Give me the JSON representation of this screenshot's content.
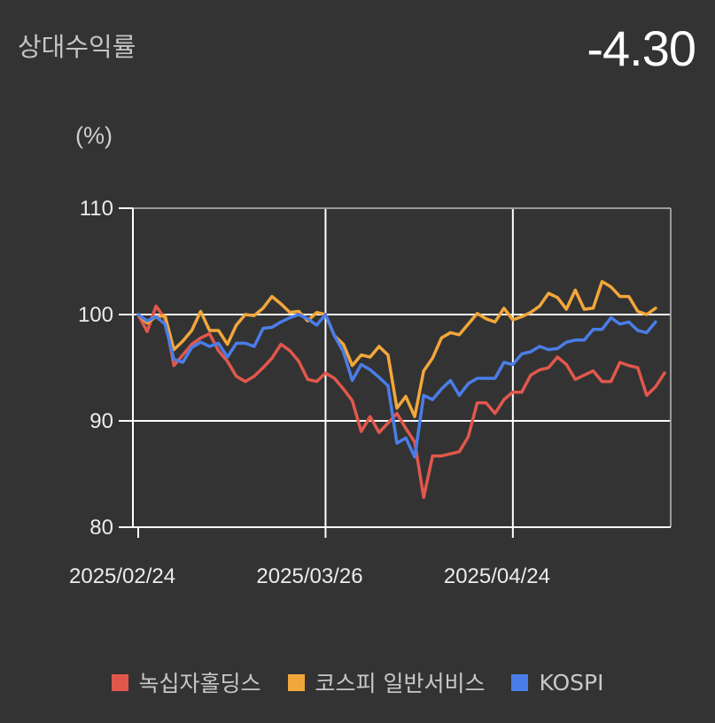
{
  "header": {
    "title": "상대수익률",
    "value": "-4.30"
  },
  "chart_data": {
    "type": "line",
    "unit_label": "(%)",
    "ylim": [
      80,
      110
    ],
    "yticks": [
      "110",
      "100",
      "90",
      "80"
    ],
    "ytick_values": [
      110,
      100,
      90,
      80
    ],
    "x_labels": [
      "2025/02/24",
      "2025/03/26",
      "2025/04/24"
    ],
    "x_label_indices": [
      0,
      21,
      42
    ],
    "grid": true,
    "legend_position": "bottom",
    "series": [
      {
        "name": "녹십자홀딩스",
        "color": "#e2574c",
        "values": [
          100,
          98.4,
          100.8,
          99.6,
          95.2,
          96.2,
          97.2,
          97.8,
          98.2,
          96.6,
          95.6,
          94.2,
          93.7,
          94.2,
          95.0,
          95.9,
          97.2,
          96.6,
          95.6,
          93.9,
          93.7,
          94.5,
          94.0,
          93.0,
          91.9,
          89.0,
          90.4,
          88.9,
          89.8,
          90.7,
          89.3,
          88.0,
          82.8,
          86.7,
          86.7,
          86.9,
          87.1,
          88.5,
          91.7,
          91.7,
          90.7,
          92.0,
          92.7,
          92.7,
          94.3,
          94.8,
          95.0,
          96.0,
          95.3,
          93.9,
          94.3,
          94.7,
          93.7,
          93.7,
          95.5,
          95.2,
          95.0,
          92.4,
          93.2,
          94.5
        ]
      },
      {
        "name": "코스피 일반서비스",
        "color": "#f2a73b",
        "values": [
          100,
          99.2,
          99.8,
          99.9,
          96.7,
          97.5,
          98.5,
          100.3,
          98.5,
          98.5,
          97.2,
          99.0,
          100.0,
          99.9,
          100.6,
          101.7,
          101.0,
          100.2,
          100.3,
          99.4,
          100.2,
          100.0,
          98.0,
          97.2,
          95.2,
          96.2,
          96.0,
          97.0,
          96.2,
          91.2,
          92.3,
          90.4,
          94.7,
          95.9,
          97.8,
          98.3,
          98.1,
          99.1,
          100.1,
          99.6,
          99.3,
          100.6,
          99.5,
          99.8,
          100.2,
          100.8,
          102.0,
          101.6,
          100.5,
          102.3,
          100.5,
          100.6,
          103.1,
          102.6,
          101.7,
          101.7,
          100.3,
          100.0,
          100.6
        ]
      },
      {
        "name": "KOSPI",
        "color": "#4a7de8",
        "values": [
          100,
          99.4,
          99.8,
          99.1,
          95.8,
          95.5,
          96.9,
          97.4,
          97.0,
          97.3,
          96.0,
          97.3,
          97.3,
          97.0,
          98.7,
          98.8,
          99.3,
          99.7,
          100.0,
          99.6,
          99.0,
          100.0,
          98.0,
          96.5,
          93.8,
          95.3,
          94.8,
          94.1,
          93.3,
          87.9,
          88.4,
          86.6,
          92.4,
          92.0,
          93.0,
          93.8,
          92.4,
          93.5,
          94.0,
          94.0,
          94.0,
          95.5,
          95.3,
          96.3,
          96.5,
          97.0,
          96.7,
          96.8,
          97.4,
          97.6,
          97.6,
          98.6,
          98.6,
          99.7,
          99.1,
          99.3,
          98.5,
          98.3,
          99.3
        ]
      }
    ]
  }
}
